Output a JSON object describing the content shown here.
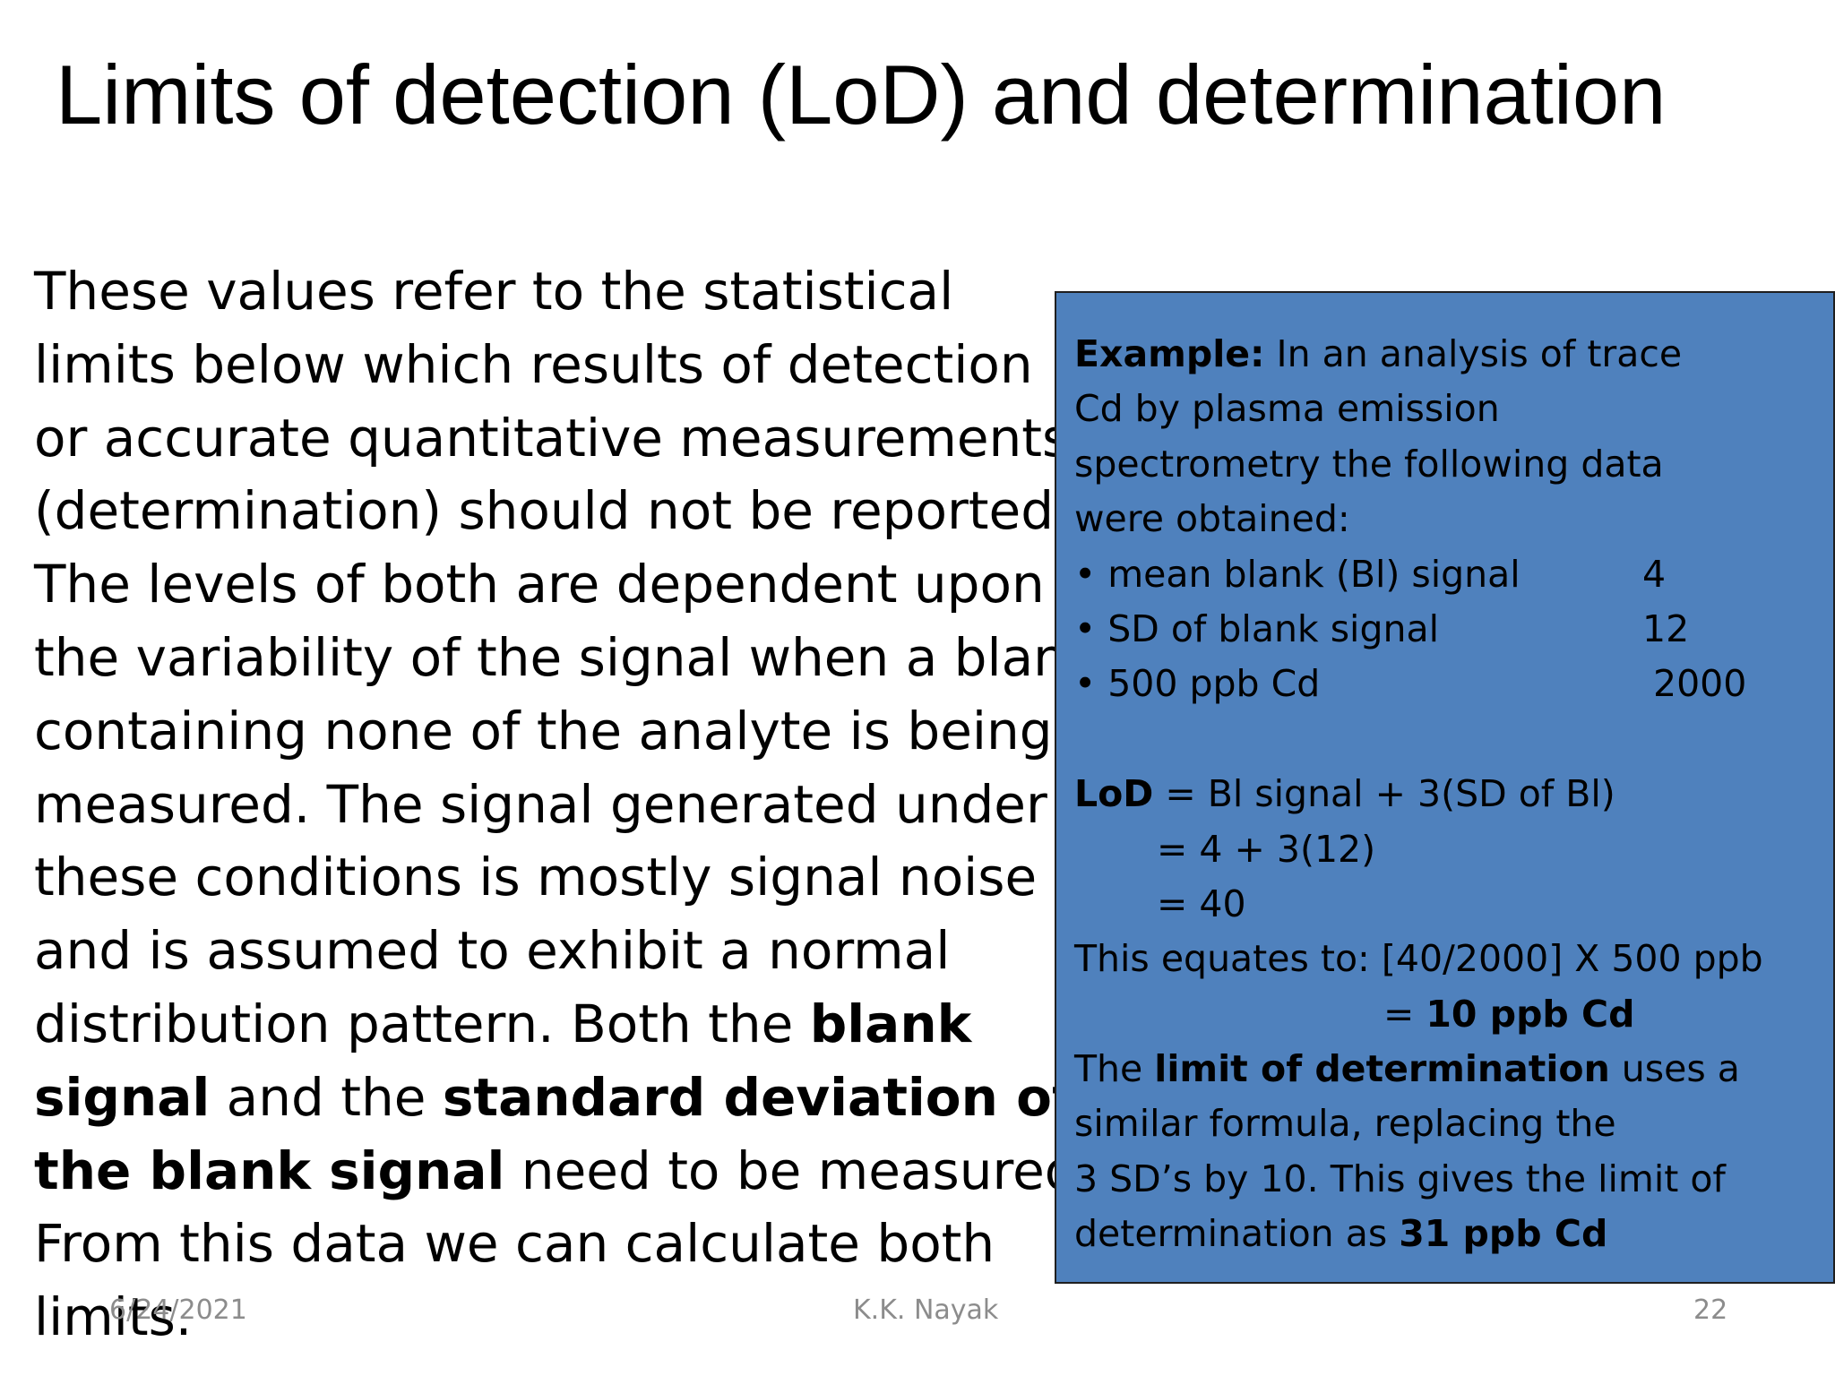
{
  "title": "Limits of detection (LoD) and determination",
  "body": {
    "l1": "These values refer to the statistical",
    "l2": "limits below which results of detection",
    "l3": "or accurate quantitative measurements",
    "l4": "(determination) should not be reported.",
    "l5": "The levels of both are dependent upon",
    "l6": "the variability of the signal when a blank",
    "l7": "containing none of the analyte is being",
    "l8": "measured.  The signal generated under",
    "l9": "these conditions is mostly signal noise",
    "l10": "and is assumed to exhibit a normal",
    "l11_a": "distribution pattern.  Both the ",
    "l11_b": "blank",
    "l12_a": "signal",
    "l12_b": " and the ",
    "l12_c": "standard deviation of",
    "l13_a": "the blank signal",
    "l13_b": " need to be measured.",
    "l14": "From this data we can calculate both",
    "l15": "limits."
  },
  "example": {
    "heading": "Example:",
    "intro_1": " In an analysis of trace",
    "intro_2": "Cd by plasma emission",
    "intro_3": "spectrometry the following data",
    "intro_4": "were obtained:",
    "bullets": [
      {
        "label": "• mean blank (Bl) signal",
        "value": "4"
      },
      {
        "label": "• SD of blank signal",
        "value": "12"
      },
      {
        "label": "• 500 ppb Cd",
        "value": "2000"
      }
    ],
    "lod_label": "LoD",
    "lod_formula": " = Bl signal + 3(SD of Bl)",
    "lod_step2": "= 4 + 3(12)",
    "lod_step3": "= 40",
    "equates": "This equates to: [40/2000] X 500 ppb",
    "equates_result_prefix": "= ",
    "equates_result": "10 ppb Cd",
    "det_1a": "The ",
    "det_1b": "limit of determination",
    "det_1c": " uses a",
    "det_2": "similar formula, replacing the",
    "det_3": "3 SD’s by 10. This gives the limit of",
    "det_4a": "determination as ",
    "det_4b": "31 ppb Cd"
  },
  "footer": {
    "date": "6/24/2021",
    "author": "K.K. Nayak",
    "page": "22"
  },
  "colors": {
    "box_background": "#4f81bd",
    "footer_text": "#8c8c8c"
  }
}
